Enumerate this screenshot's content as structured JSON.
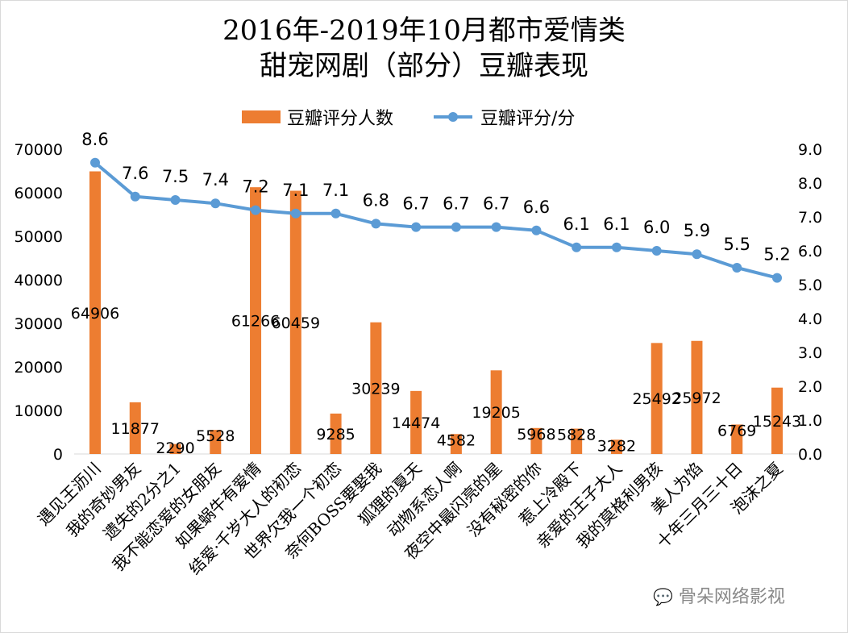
{
  "chart_data": {
    "type": "bar+line",
    "title_line1": "2016年-2019年10月都市爱情类",
    "title_line2": "甜宠网剧（部分）豆瓣表现",
    "legend_position": "top",
    "grid": false,
    "categories": [
      "遇见王沥川",
      "我的奇妙男友",
      "遗失的2分之1",
      "我不能恋爱的女朋友",
      "如果蜗牛有爱情",
      "结爱·千岁大人的初恋",
      "世界欠我一个初恋",
      "奈何BOSS要娶我",
      "狐狸的夏天",
      "动物系恋人啊",
      "夜空中最闪亮的星",
      "没有秘密的你",
      "惹上冷殿下",
      "亲爱的王子大人",
      "我的莫格利男孩",
      "美人为馅",
      "十年三月三十日",
      "泡沫之夏"
    ],
    "series": [
      {
        "name": "豆瓣评分人数",
        "type": "bar",
        "axis": "left",
        "color": "#ED7D31",
        "values": [
          64906,
          11877,
          2290,
          5528,
          61266,
          60459,
          9285,
          30239,
          14474,
          4582,
          19205,
          5968,
          5828,
          3282,
          25492,
          25972,
          6769,
          15243
        ]
      },
      {
        "name": "豆瓣评分/分",
        "type": "line",
        "axis": "right",
        "color": "#5B9BD5",
        "values": [
          8.6,
          7.6,
          7.5,
          7.4,
          7.2,
          7.1,
          7.1,
          6.8,
          6.7,
          6.7,
          6.7,
          6.6,
          6.1,
          6.1,
          6.0,
          5.9,
          5.5,
          5.2
        ]
      }
    ],
    "y_left": {
      "range": [
        0,
        70000
      ],
      "ticks": [
        "0",
        "10000",
        "20000",
        "30000",
        "40000",
        "50000",
        "60000",
        "70000"
      ]
    },
    "y_right": {
      "range": [
        0,
        9
      ],
      "ticks": [
        "0.0",
        "1.0",
        "2.0",
        "3.0",
        "4.0",
        "5.0",
        "6.0",
        "7.0",
        "8.0",
        "9.0"
      ]
    }
  },
  "watermark": "骨朵网络影视"
}
